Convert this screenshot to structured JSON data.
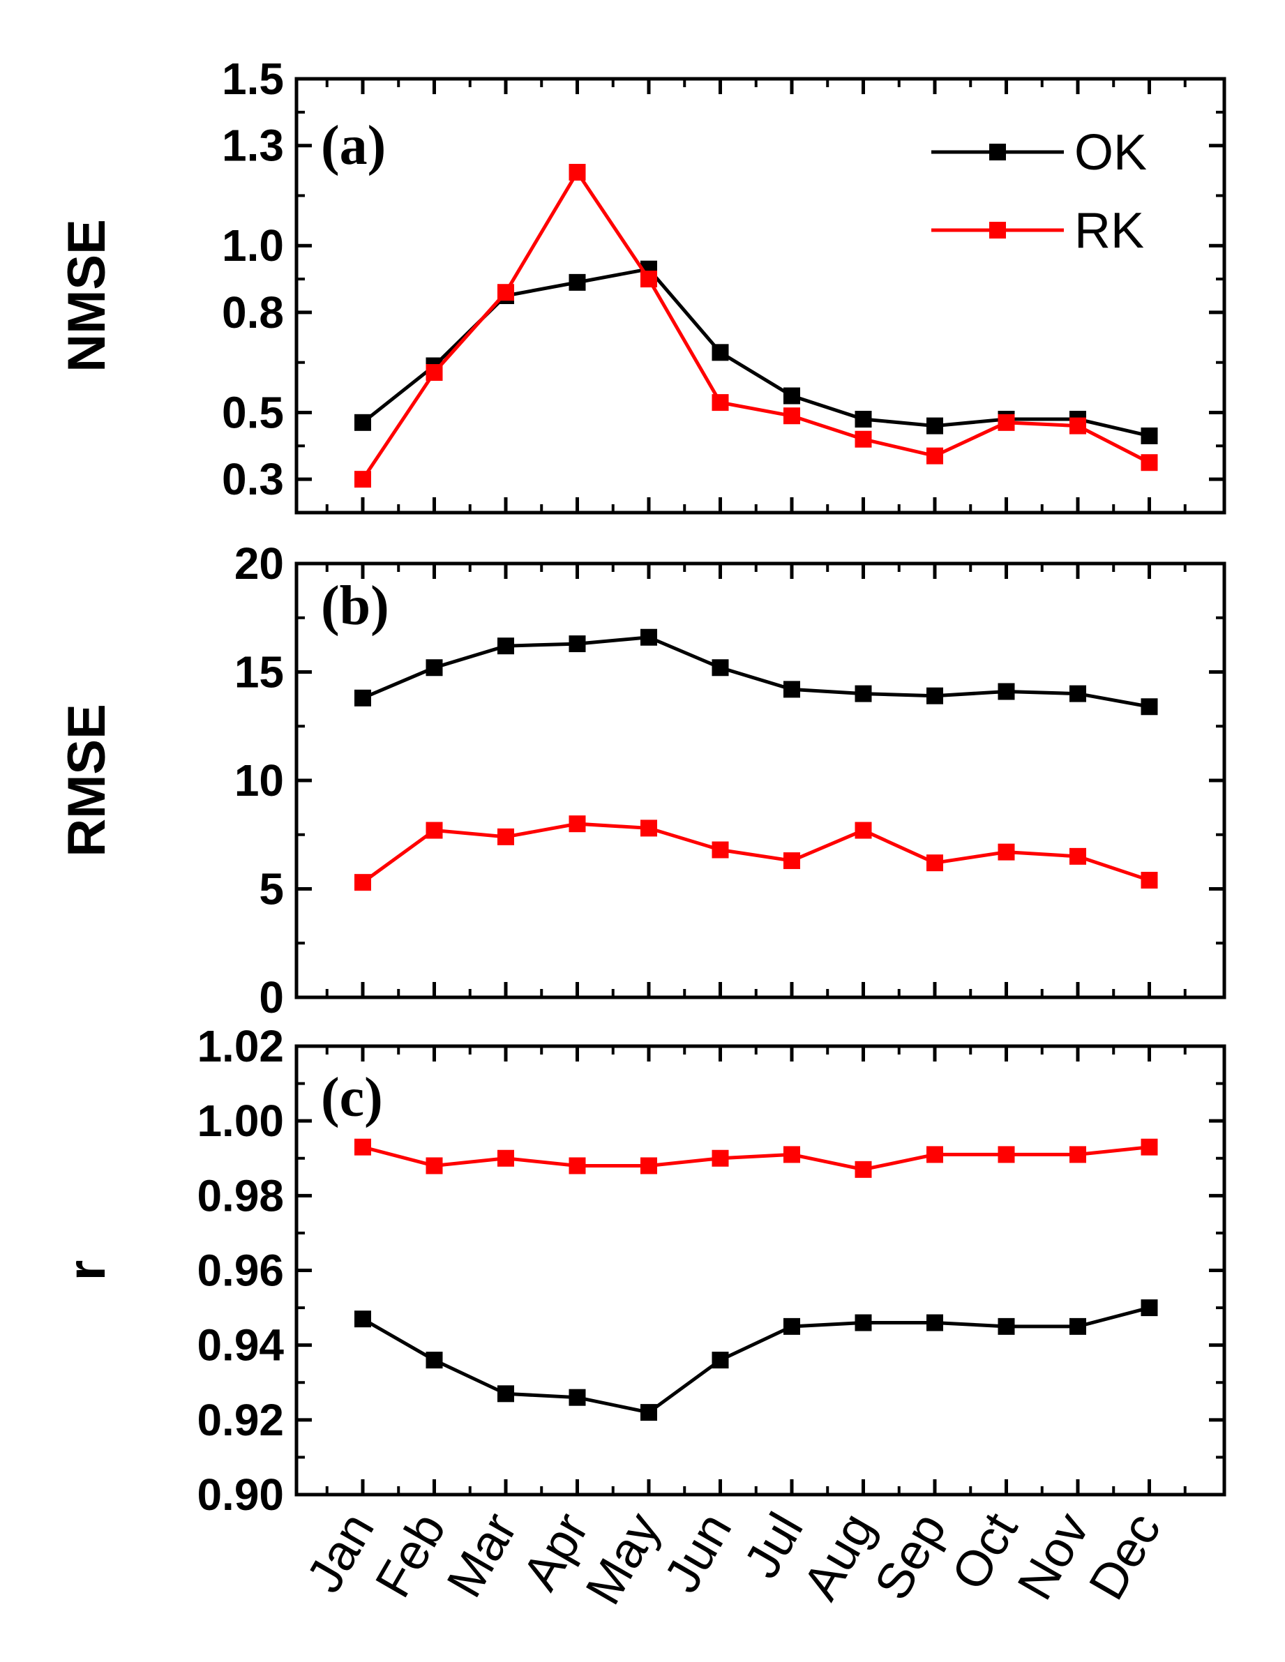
{
  "chart_data": [
    {
      "type": "line",
      "panel": "(a)",
      "ylabel": "NMSE",
      "ylim": [
        0.2,
        1.5
      ],
      "yticks": [
        0.3,
        0.5,
        0.8,
        1.0,
        1.3,
        1.5
      ],
      "ytick_labels": [
        "0.3",
        "0.5",
        "0.8",
        "1.0",
        "1.3",
        "1.5"
      ],
      "categories": [
        "Jan",
        "Feb",
        "Mar",
        "Apr",
        "May",
        "Jun",
        "Jul",
        "Aug",
        "Sep",
        "Oct",
        "Nov",
        "Dec"
      ],
      "series": [
        {
          "name": "OK",
          "color": "#000000",
          "values": [
            0.47,
            0.64,
            0.85,
            0.89,
            0.93,
            0.68,
            0.55,
            0.48,
            0.46,
            0.48,
            0.48,
            0.43
          ]
        },
        {
          "name": "RK",
          "color": "#ff0000",
          "values": [
            0.3,
            0.62,
            0.86,
            1.22,
            0.9,
            0.53,
            0.49,
            0.42,
            0.37,
            0.47,
            0.46,
            0.35
          ]
        }
      ],
      "legend": {
        "position": "top-right",
        "entries": [
          "OK",
          "RK"
        ]
      }
    },
    {
      "type": "line",
      "panel": "(b)",
      "ylabel": "RMSE",
      "ylim": [
        0,
        20
      ],
      "yticks": [
        0,
        5,
        10,
        15,
        20
      ],
      "ytick_labels": [
        "0",
        "5",
        "10",
        "15",
        "20"
      ],
      "categories": [
        "Jan",
        "Feb",
        "Mar",
        "Apr",
        "May",
        "Jun",
        "Jul",
        "Aug",
        "Sep",
        "Oct",
        "Nov",
        "Dec"
      ],
      "series": [
        {
          "name": "OK",
          "color": "#000000",
          "values": [
            13.8,
            15.2,
            16.2,
            16.3,
            16.6,
            15.2,
            14.2,
            14.0,
            13.9,
            14.1,
            14.0,
            13.4
          ]
        },
        {
          "name": "RK",
          "color": "#ff0000",
          "values": [
            5.3,
            7.7,
            7.4,
            8.0,
            7.8,
            6.8,
            6.3,
            7.7,
            6.2,
            6.7,
            6.5,
            5.4
          ]
        }
      ]
    },
    {
      "type": "line",
      "panel": "(c)",
      "ylabel": "r",
      "ylim": [
        0.9,
        1.02
      ],
      "yticks": [
        0.9,
        0.92,
        0.94,
        0.96,
        0.98,
        1.0,
        1.02
      ],
      "ytick_labels": [
        "0.90",
        "0.92",
        "0.94",
        "0.96",
        "0.98",
        "1.00",
        "1.02"
      ],
      "categories": [
        "Jan",
        "Feb",
        "Mar",
        "Apr",
        "May",
        "Jun",
        "Jul",
        "Aug",
        "Sep",
        "Oct",
        "Nov",
        "Dec"
      ],
      "series": [
        {
          "name": "OK",
          "color": "#000000",
          "values": [
            0.947,
            0.936,
            0.927,
            0.926,
            0.922,
            0.936,
            0.945,
            0.946,
            0.946,
            0.945,
            0.945,
            0.95
          ]
        },
        {
          "name": "RK",
          "color": "#ff0000",
          "values": [
            0.993,
            0.988,
            0.99,
            0.988,
            0.988,
            0.99,
            0.991,
            0.987,
            0.991,
            0.991,
            0.991,
            0.993
          ]
        }
      ]
    }
  ]
}
